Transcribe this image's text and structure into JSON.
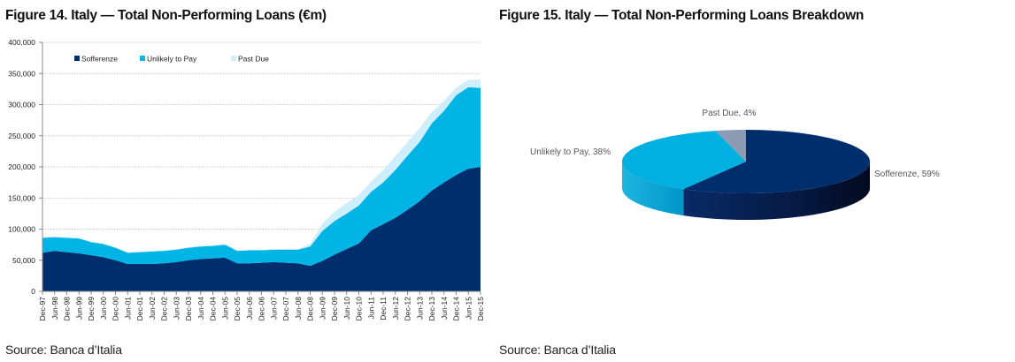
{
  "figures": {
    "left_title": "Figure 14. Italy — Total Non-Performing Loans (€m)",
    "left_source": "Source: Banca d’Italia",
    "right_title": "Figure 15. Italy — Total Non-Performing Loans Breakdown",
    "right_source": "Source: Banca d’Italia"
  },
  "chart_data": [
    {
      "type": "area",
      "stacked": true,
      "title": "Figure 14. Italy — Total Non-Performing Loans (€m)",
      "xlabel": "",
      "ylabel": "",
      "ylim": [
        0,
        400000
      ],
      "yticks": [
        0,
        50000,
        100000,
        150000,
        200000,
        250000,
        300000,
        350000,
        400000
      ],
      "ytick_labels": [
        "0",
        "50,000",
        "100,000",
        "150,000",
        "200,000",
        "250,000",
        "300,000",
        "350,000",
        "400,000"
      ],
      "grid": true,
      "legend_position": "top-left",
      "categories": [
        "Dec-97",
        "Jun-98",
        "Dec-98",
        "Jun-99",
        "Dec-99",
        "Jun-00",
        "Dec-00",
        "Jun-01",
        "Dec-01",
        "Jun-02",
        "Dec-02",
        "Jun-03",
        "Dec-03",
        "Jun-04",
        "Dec-04",
        "Jun-05",
        "Dec-05",
        "Jun-06",
        "Dec-06",
        "Jun-07",
        "Dec-07",
        "Jun-08",
        "Dec-08",
        "Jun-09",
        "Dec-09",
        "Jun-10",
        "Dec-10",
        "Jun-11",
        "Dec-11",
        "Jun-12",
        "Dec-12",
        "Jun-13",
        "Dec-13",
        "Jun-14",
        "Dec-14",
        "Jun-15",
        "Dec-15"
      ],
      "series": [
        {
          "name": "Sofferenze",
          "color": "#002e6d",
          "values": [
            62000,
            65000,
            63000,
            61000,
            58000,
            55000,
            50000,
            44000,
            44000,
            44000,
            45000,
            47000,
            50000,
            52000,
            53000,
            54000,
            45000,
            45000,
            46000,
            47000,
            46000,
            45000,
            41000,
            49000,
            59000,
            68000,
            77000,
            98000,
            108000,
            118000,
            131000,
            145000,
            162000,
            175000,
            187000,
            197000,
            200000
          ]
        },
        {
          "name": "Unlikely to Pay",
          "color": "#00b5e6",
          "values": [
            24000,
            22000,
            23000,
            24000,
            21000,
            21000,
            20000,
            18000,
            19000,
            20000,
            20000,
            20000,
            20000,
            20000,
            20000,
            21000,
            20000,
            21000,
            20000,
            20000,
            21000,
            22000,
            31000,
            48000,
            54000,
            57000,
            61000,
            62000,
            67000,
            77000,
            87000,
            95000,
            108000,
            115000,
            128000,
            131000,
            127000
          ]
        },
        {
          "name": "Past Due",
          "color": "#cdeefa",
          "values": [
            1000,
            1000,
            1000,
            1000,
            1000,
            1000,
            1000,
            1000,
            1000,
            1000,
            1000,
            1000,
            1000,
            1000,
            1000,
            1000,
            1000,
            1000,
            1000,
            1000,
            1000,
            1000,
            4000,
            12000,
            15000,
            17000,
            17000,
            16000,
            20000,
            22000,
            22000,
            22000,
            18000,
            16000,
            12000,
            12000,
            13000
          ]
        }
      ]
    },
    {
      "type": "pie",
      "style": "3d",
      "title": "Figure 15. Italy — Total Non-Performing Loans Breakdown",
      "slices": [
        {
          "name": "Sofferenze",
          "value": 59,
          "label": "Sofferenze, 59%",
          "color": "#002e6d"
        },
        {
          "name": "Unlikely to Pay",
          "value": 38,
          "label": "Unlikely to Pay, 38%",
          "color": "#00b0e0"
        },
        {
          "name": "Past Due",
          "value": 4,
          "label": "Past Due, 4%",
          "color": "#8d9ab4"
        }
      ]
    }
  ]
}
